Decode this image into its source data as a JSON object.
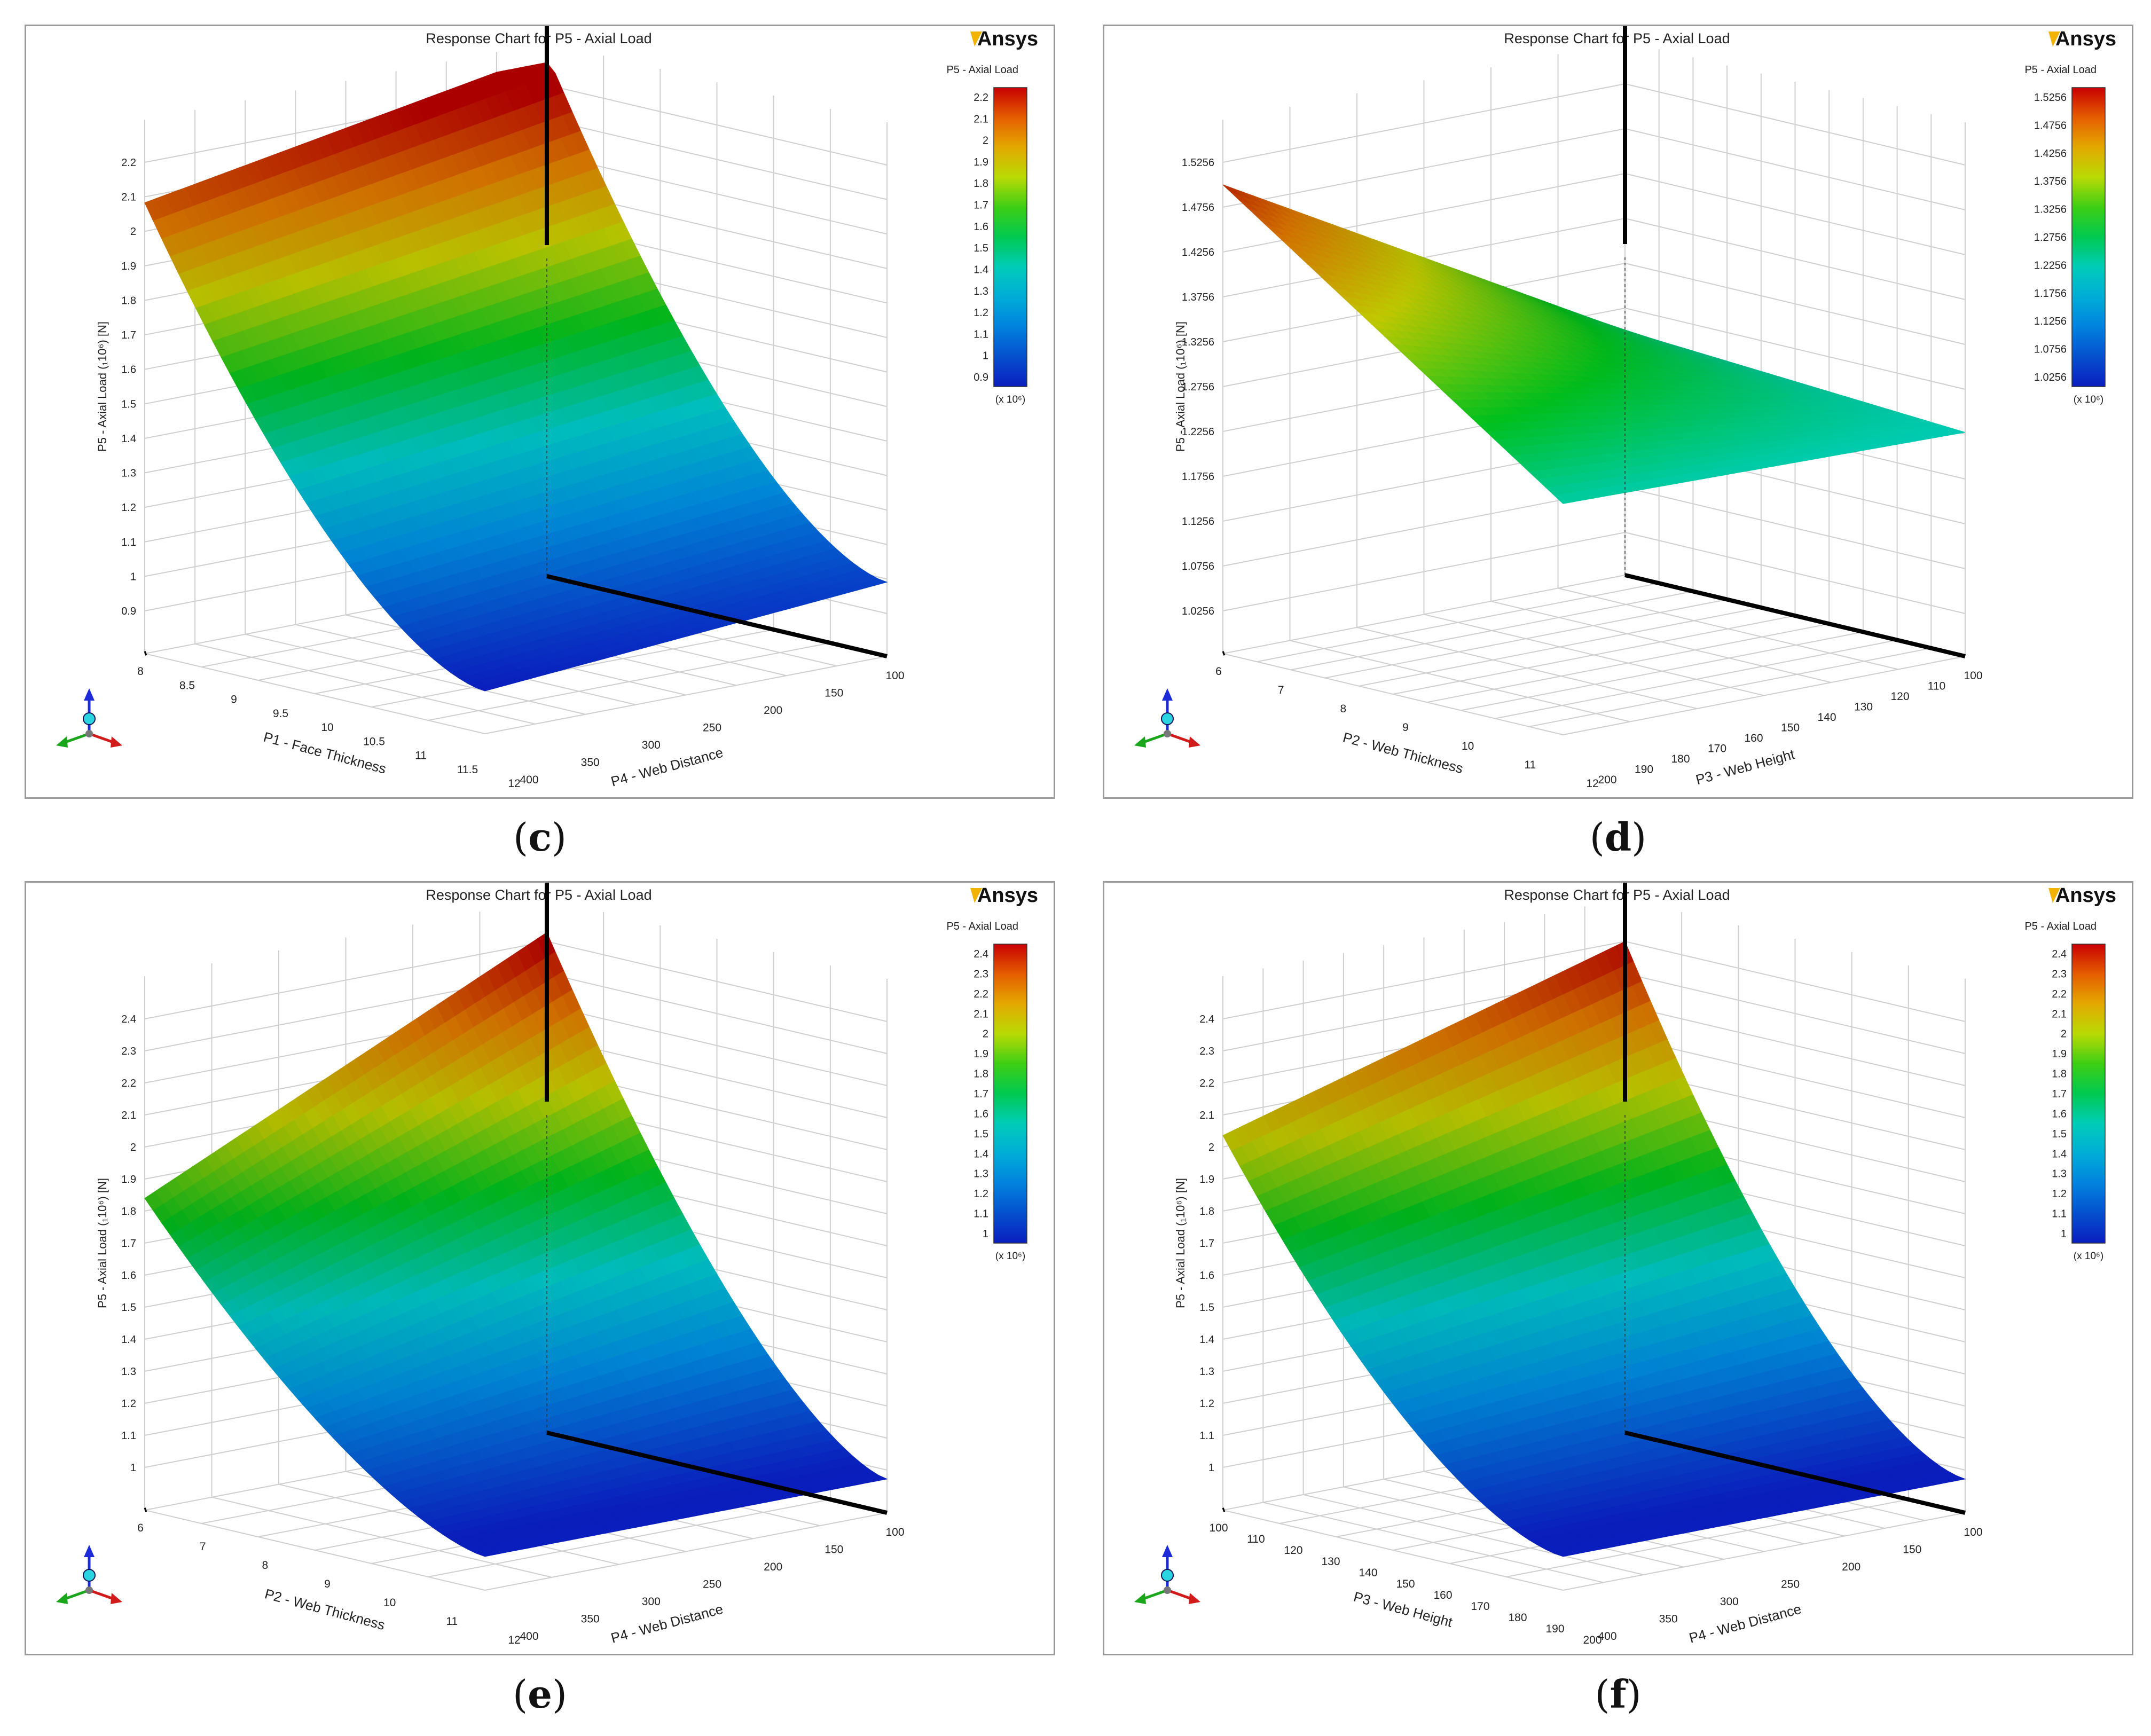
{
  "charts": [
    {
      "caption": "c",
      "title": "Response Chart for P5 - Axial Load",
      "logo": "Ansys",
      "colorbar_title": "P5 - Axial Load",
      "colorbar_ticks": [
        "2.2",
        "2.1",
        "2",
        "1.9",
        "1.8",
        "1.7",
        "1.6",
        "1.5",
        "1.4",
        "1.3",
        "1.2",
        "1.1",
        "1",
        "0.9"
      ],
      "colorbar_unit": "(x 10⁶)",
      "zlabel": "P5 - Axial Load  (₁10⁶)  [N]",
      "z_ticks": [
        "2.2",
        "2.1",
        "2",
        "1.9",
        "1.8",
        "1.7",
        "1.6",
        "1.5",
        "1.4",
        "1.3",
        "1.2",
        "1.1",
        "1",
        "0.9"
      ],
      "xlabel": "P1 - Face Thickness",
      "x_ticks": [
        "8",
        "8.5",
        "9",
        "9.5",
        "10",
        "10.5",
        "11",
        "11.5",
        "12"
      ],
      "ylabel": "P4 - Web Distance",
      "y_ticks": [
        "400",
        "350",
        "300",
        "250",
        "200",
        "150",
        "100"
      ]
    },
    {
      "caption": "d",
      "title": "Response Chart for P5 - Axial Load",
      "logo": "Ansys",
      "colorbar_title": "P5 - Axial Load",
      "colorbar_ticks": [
        "1.5256",
        "1.4756",
        "1.4256",
        "1.3756",
        "1.3256",
        "1.2756",
        "1.2256",
        "1.1756",
        "1.1256",
        "1.0756",
        "1.0256"
      ],
      "colorbar_unit": "(x 10⁶)",
      "zlabel": "P5 - Axial Load  (₁10⁶)  [N]",
      "z_ticks": [
        "1.5256",
        "1.4756",
        "1.4256",
        "1.3756",
        "1.3256",
        "1.2756",
        "1.2256",
        "1.1756",
        "1.1256",
        "1.0756",
        "1.0256"
      ],
      "xlabel": "P2 - Web Thickness",
      "x_ticks": [
        "6",
        "7",
        "8",
        "9",
        "10",
        "11",
        "12"
      ],
      "ylabel": "P3 - Web Height",
      "y_ticks": [
        "200",
        "190",
        "180",
        "170",
        "160",
        "150",
        "140",
        "130",
        "120",
        "110",
        "100"
      ]
    },
    {
      "caption": "e",
      "title": "Response Chart for P5 - Axial Load",
      "logo": "Ansys",
      "colorbar_title": "P5 - Axial Load",
      "colorbar_ticks": [
        "2.4",
        "2.3",
        "2.2",
        "2.1",
        "2",
        "1.9",
        "1.8",
        "1.7",
        "1.6",
        "1.5",
        "1.4",
        "1.3",
        "1.2",
        "1.1",
        "1"
      ],
      "colorbar_unit": "(x 10⁶)",
      "zlabel": "P5 - Axial Load  (₁10⁶)  [N]",
      "z_ticks": [
        "2.4",
        "2.3",
        "2.2",
        "2.1",
        "2",
        "1.9",
        "1.8",
        "1.7",
        "1.6",
        "1.5",
        "1.4",
        "1.3",
        "1.2",
        "1.1",
        "1"
      ],
      "xlabel": "P2 - Web Thickness",
      "x_ticks": [
        "6",
        "7",
        "8",
        "9",
        "10",
        "11",
        "12"
      ],
      "ylabel": "P4 - Web Distance",
      "y_ticks": [
        "400",
        "350",
        "300",
        "250",
        "200",
        "150",
        "100"
      ]
    },
    {
      "caption": "f",
      "title": "Response Chart for P5 - Axial Load",
      "logo": "Ansys",
      "colorbar_title": "P5 - Axial Load",
      "colorbar_ticks": [
        "2.4",
        "2.3",
        "2.2",
        "2.1",
        "2",
        "1.9",
        "1.8",
        "1.7",
        "1.6",
        "1.5",
        "1.4",
        "1.3",
        "1.2",
        "1.1",
        "1"
      ],
      "colorbar_unit": "(x 10⁶)",
      "zlabel": "P5 - Axial Load  (₁10⁶)  [N]",
      "z_ticks": [
        "2.4",
        "2.3",
        "2.2",
        "2.1",
        "2",
        "1.9",
        "1.8",
        "1.7",
        "1.6",
        "1.5",
        "1.4",
        "1.3",
        "1.2",
        "1.1",
        "1"
      ],
      "xlabel": "P3 - Web Height",
      "x_ticks": [
        "100",
        "110",
        "120",
        "130",
        "140",
        "150",
        "160",
        "170",
        "180",
        "190",
        "200"
      ],
      "ylabel": "P4 - Web Distance",
      "y_ticks": [
        "400",
        "350",
        "300",
        "250",
        "200",
        "150",
        "100"
      ]
    }
  ],
  "chart_data": [
    {
      "type": "surface",
      "title": "Response Chart for P5 - Axial Load",
      "xlabel": "P1 - Face Thickness",
      "xlim": [
        8,
        12
      ],
      "ylabel": "P4 - Web Distance",
      "ylim": [
        100,
        400
      ],
      "zlabel": "P5 - Axial Load (x10^6) [N]",
      "zlim": [
        0.9,
        2.2
      ],
      "corner_values": [
        {
          "x": 8,
          "y": 400,
          "z": 0.9
        },
        {
          "x": 12,
          "y": 400,
          "z": 0.99
        },
        {
          "x": 8,
          "y": 100,
          "z": 2.08
        },
        {
          "x": 12,
          "y": 100,
          "z": 2.2
        }
      ]
    },
    {
      "type": "surface",
      "title": "Response Chart for P5 - Axial Load",
      "xlabel": "P2 - Web Thickness",
      "xlim": [
        6,
        12
      ],
      "ylabel": "P3 - Web Height",
      "ylim": [
        100,
        200
      ],
      "zlabel": "P5 - Axial Load (x10^6) [N]",
      "zlim": [
        1.0256,
        1.5256
      ],
      "corner_values": [
        {
          "x": 6,
          "y": 200,
          "z": 1.15
        },
        {
          "x": 12,
          "y": 200,
          "z": 1.08
        },
        {
          "x": 6,
          "y": 100,
          "z": 1.5
        },
        {
          "x": 12,
          "y": 100,
          "z": 1.24
        }
      ]
    },
    {
      "type": "surface",
      "title": "Response Chart for P5 - Axial Load",
      "xlabel": "P2 - Web Thickness",
      "xlim": [
        6,
        12
      ],
      "ylabel": "P4 - Web Distance",
      "ylim": [
        100,
        400
      ],
      "zlabel": "P5 - Axial Load (x10^6) [N]",
      "zlim": [
        1.0,
        2.4
      ],
      "corner_values": [
        {
          "x": 6,
          "y": 400,
          "z": 0.95
        },
        {
          "x": 12,
          "y": 400,
          "z": 0.95
        },
        {
          "x": 6,
          "y": 100,
          "z": 1.9
        },
        {
          "x": 12,
          "y": 100,
          "z": 2.45
        }
      ]
    },
    {
      "type": "surface",
      "title": "Response Chart for P5 - Axial Load",
      "xlabel": "P3 - Web Height",
      "xlim": [
        100,
        200
      ],
      "ylabel": "P4 - Web Distance",
      "ylim": [
        100,
        400
      ],
      "zlabel": "P5 - Axial Load (x10^6) [N]",
      "zlim": [
        1.0,
        2.4
      ],
      "corner_values": [
        {
          "x": 100,
          "y": 400,
          "z": 0.97
        },
        {
          "x": 200,
          "y": 400,
          "z": 0.97
        },
        {
          "x": 100,
          "y": 100,
          "z": 2.05
        },
        {
          "x": 200,
          "y": 100,
          "z": 2.4
        }
      ]
    }
  ]
}
